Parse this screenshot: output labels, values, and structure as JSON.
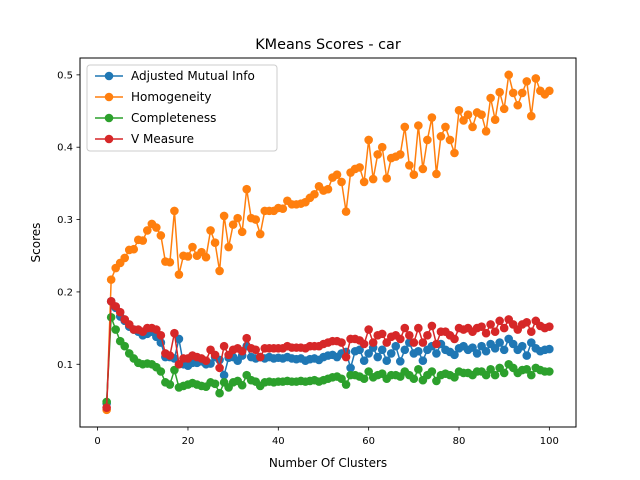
{
  "chart_data": {
    "type": "line",
    "title": "KMeans Scores - car",
    "xlabel": "Number Of Clusters",
    "ylabel": "Scores",
    "xlim": [
      -3.9,
      105.9
    ],
    "ylim": [
      0.0133,
      0.5233
    ],
    "xticks": [
      0,
      20,
      40,
      60,
      80,
      100
    ],
    "yticks": [
      0.1,
      0.2,
      0.3,
      0.4,
      0.5
    ],
    "grid": false,
    "legend_position": "upper-left",
    "x": [
      2,
      3,
      4,
      5,
      6,
      7,
      8,
      9,
      10,
      11,
      12,
      13,
      14,
      15,
      16,
      17,
      18,
      19,
      20,
      21,
      22,
      23,
      24,
      25,
      26,
      27,
      28,
      29,
      30,
      31,
      32,
      33,
      34,
      35,
      36,
      37,
      38,
      39,
      40,
      41,
      42,
      43,
      44,
      45,
      46,
      47,
      48,
      49,
      50,
      51,
      52,
      53,
      54,
      55,
      56,
      57,
      58,
      59,
      60,
      61,
      62,
      63,
      64,
      65,
      66,
      67,
      68,
      69,
      70,
      71,
      72,
      73,
      74,
      75,
      76,
      77,
      78,
      79,
      80,
      81,
      82,
      83,
      84,
      85,
      86,
      87,
      88,
      89,
      90,
      91,
      92,
      93,
      94,
      95,
      96,
      97,
      98,
      99,
      100
    ],
    "series": [
      {
        "name": "Adjusted Mutual Info",
        "color": "#1f77b4",
        "values": [
          0.046,
          0.187,
          0.178,
          0.166,
          0.16,
          0.152,
          0.148,
          0.145,
          0.14,
          0.142,
          0.145,
          0.138,
          0.13,
          0.11,
          0.11,
          0.108,
          0.135,
          0.1,
          0.098,
          0.102,
          0.102,
          0.104,
          0.1,
          0.101,
          0.11,
          0.106,
          0.085,
          0.109,
          0.11,
          0.105,
          0.112,
          0.125,
          0.11,
          0.108,
          0.11,
          0.108,
          0.11,
          0.108,
          0.109,
          0.108,
          0.11,
          0.108,
          0.107,
          0.108,
          0.105,
          0.107,
          0.108,
          0.106,
          0.11,
          0.112,
          0.113,
          0.11,
          0.115,
          0.117,
          0.095,
          0.118,
          0.12,
          0.105,
          0.115,
          0.123,
          0.11,
          0.12,
          0.105,
          0.115,
          0.125,
          0.104,
          0.12,
          0.13,
          0.115,
          0.118,
          0.105,
          0.12,
          0.125,
          0.115,
          0.128,
          0.12,
          0.117,
          0.113,
          0.122,
          0.125,
          0.12,
          0.123,
          0.115,
          0.125,
          0.118,
          0.128,
          0.122,
          0.13,
          0.12,
          0.135,
          0.128,
          0.12,
          0.125,
          0.112,
          0.13,
          0.122,
          0.118,
          0.12,
          0.121
        ]
      },
      {
        "name": "Homogeneity",
        "color": "#ff7f0e",
        "values": [
          0.037,
          0.217,
          0.233,
          0.24,
          0.247,
          0.258,
          0.259,
          0.272,
          0.271,
          0.285,
          0.294,
          0.289,
          0.278,
          0.242,
          0.241,
          0.312,
          0.224,
          0.25,
          0.249,
          0.262,
          0.25,
          0.255,
          0.248,
          0.285,
          0.268,
          0.229,
          0.305,
          0.262,
          0.293,
          0.302,
          0.283,
          0.342,
          0.302,
          0.3,
          0.28,
          0.312,
          0.312,
          0.312,
          0.316,
          0.315,
          0.326,
          0.321,
          0.321,
          0.322,
          0.324,
          0.33,
          0.335,
          0.346,
          0.34,
          0.342,
          0.358,
          0.362,
          0.352,
          0.311,
          0.365,
          0.37,
          0.372,
          0.352,
          0.41,
          0.356,
          0.39,
          0.4,
          0.357,
          0.385,
          0.387,
          0.39,
          0.428,
          0.375,
          0.362,
          0.43,
          0.37,
          0.41,
          0.441,
          0.363,
          0.415,
          0.428,
          0.41,
          0.392,
          0.451,
          0.437,
          0.445,
          0.428,
          0.448,
          0.445,
          0.422,
          0.468,
          0.438,
          0.476,
          0.453,
          0.5,
          0.475,
          0.458,
          0.475,
          0.491,
          0.443,
          0.495,
          0.478,
          0.473,
          0.478
        ]
      },
      {
        "name": "Completeness",
        "color": "#2ca02c",
        "values": [
          0.048,
          0.165,
          0.148,
          0.132,
          0.125,
          0.115,
          0.108,
          0.102,
          0.1,
          0.101,
          0.1,
          0.096,
          0.09,
          0.075,
          0.072,
          0.092,
          0.068,
          0.07,
          0.072,
          0.074,
          0.072,
          0.07,
          0.069,
          0.075,
          0.073,
          0.06,
          0.075,
          0.068,
          0.075,
          0.077,
          0.071,
          0.085,
          0.078,
          0.076,
          0.07,
          0.075,
          0.076,
          0.075,
          0.076,
          0.076,
          0.077,
          0.076,
          0.076,
          0.077,
          0.076,
          0.077,
          0.078,
          0.076,
          0.078,
          0.08,
          0.082,
          0.083,
          0.08,
          0.072,
          0.085,
          0.085,
          0.083,
          0.08,
          0.09,
          0.082,
          0.085,
          0.087,
          0.08,
          0.085,
          0.085,
          0.083,
          0.09,
          0.085,
          0.08,
          0.093,
          0.078,
          0.085,
          0.09,
          0.077,
          0.085,
          0.087,
          0.085,
          0.082,
          0.09,
          0.088,
          0.088,
          0.085,
          0.09,
          0.09,
          0.085,
          0.093,
          0.085,
          0.095,
          0.088,
          0.1,
          0.095,
          0.088,
          0.092,
          0.093,
          0.085,
          0.095,
          0.092,
          0.09,
          0.09
        ]
      },
      {
        "name": "V Measure",
        "color": "#d62728",
        "values": [
          0.04,
          0.187,
          0.18,
          0.172,
          0.162,
          0.155,
          0.148,
          0.148,
          0.145,
          0.15,
          0.15,
          0.148,
          0.14,
          0.115,
          0.112,
          0.143,
          0.1,
          0.108,
          0.108,
          0.112,
          0.11,
          0.108,
          0.105,
          0.12,
          0.113,
          0.095,
          0.125,
          0.113,
          0.12,
          0.122,
          0.118,
          0.136,
          0.122,
          0.12,
          0.11,
          0.122,
          0.122,
          0.122,
          0.122,
          0.122,
          0.125,
          0.123,
          0.123,
          0.123,
          0.122,
          0.125,
          0.125,
          0.125,
          0.128,
          0.13,
          0.132,
          0.132,
          0.13,
          0.11,
          0.135,
          0.135,
          0.133,
          0.128,
          0.148,
          0.13,
          0.14,
          0.142,
          0.13,
          0.138,
          0.14,
          0.135,
          0.15,
          0.14,
          0.13,
          0.15,
          0.13,
          0.14,
          0.153,
          0.128,
          0.145,
          0.145,
          0.14,
          0.135,
          0.15,
          0.148,
          0.15,
          0.145,
          0.15,
          0.152,
          0.143,
          0.155,
          0.145,
          0.16,
          0.15,
          0.162,
          0.155,
          0.148,
          0.155,
          0.158,
          0.145,
          0.16,
          0.153,
          0.15,
          0.152
        ]
      }
    ]
  }
}
